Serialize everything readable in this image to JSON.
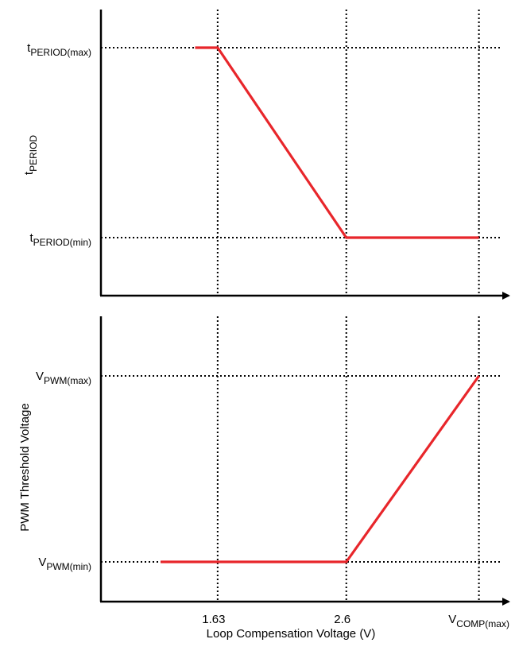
{
  "chart_data": [
    {
      "type": "line",
      "title": "",
      "xlabel": "",
      "ylabel": {
        "main": "t",
        "sub": "PERIOD"
      },
      "x_reference_lines": [
        1.63,
        2.6,
        3.6
      ],
      "xlim": [
        0.75,
        3.8
      ],
      "ylim": [
        0,
        1.2
      ],
      "y_ticks": [
        {
          "value": 1,
          "main": "t",
          "sub": "PERIOD(max)"
        },
        {
          "value": 0,
          "main": "t",
          "sub": "PERIOD(min)"
        }
      ],
      "series": [
        {
          "color": "#e8262b",
          "x": [
            1.46,
            1.63,
            2.6,
            3.6
          ],
          "y": [
            1,
            1,
            0,
            0
          ]
        }
      ]
    },
    {
      "type": "line",
      "title": "",
      "xlabel": "Loop Compensation Voltage (V)",
      "ylabel": "PWM Threshold Voltage",
      "x_reference_lines": [
        1.63,
        2.6,
        3.6
      ],
      "xlim": [
        0.75,
        3.8
      ],
      "ylim": [
        0,
        1.2
      ],
      "x_ticks": [
        {
          "value": 1.63,
          "main": "1.63",
          "sub": ""
        },
        {
          "value": 2.6,
          "main": "2.6",
          "sub": ""
        },
        {
          "value": 3.6,
          "main": "V",
          "sub": "COMP(max)"
        }
      ],
      "y_ticks": [
        {
          "value": 1,
          "main": "V",
          "sub": "PWM(max)"
        },
        {
          "value": 0,
          "main": "V",
          "sub": "PWM(min)"
        }
      ],
      "series": [
        {
          "color": "#e8262b",
          "x": [
            1.2,
            2.6,
            3.6
          ],
          "y": [
            0,
            0,
            1
          ]
        }
      ]
    }
  ]
}
